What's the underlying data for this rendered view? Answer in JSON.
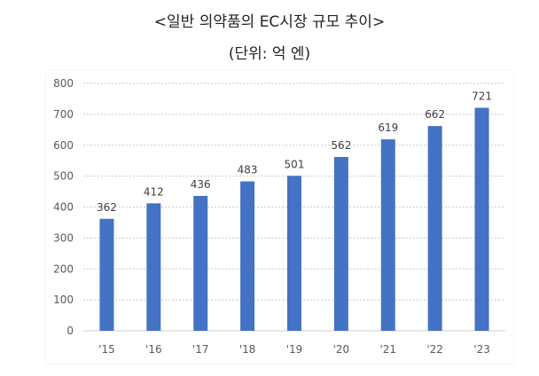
{
  "title": "<일반 의약품의 EC시장 규모 추이>",
  "subtitle": "(단위: 억 엔)",
  "chart_data": {
    "type": "bar",
    "categories": [
      "'15",
      "'16",
      "'17",
      "'18",
      "'19",
      "'20",
      "'21",
      "'22",
      "'23"
    ],
    "values": [
      362,
      412,
      436,
      483,
      501,
      562,
      619,
      662,
      721
    ],
    "data_labels": [
      "362",
      "412",
      "436",
      "483",
      "501",
      "562",
      "619",
      "662",
      "721"
    ],
    "ylim": [
      0,
      800
    ],
    "yticks": [
      0,
      100,
      200,
      300,
      400,
      500,
      600,
      700,
      800
    ],
    "grid": true,
    "bar_color": "#4472C4",
    "legend": "none"
  }
}
